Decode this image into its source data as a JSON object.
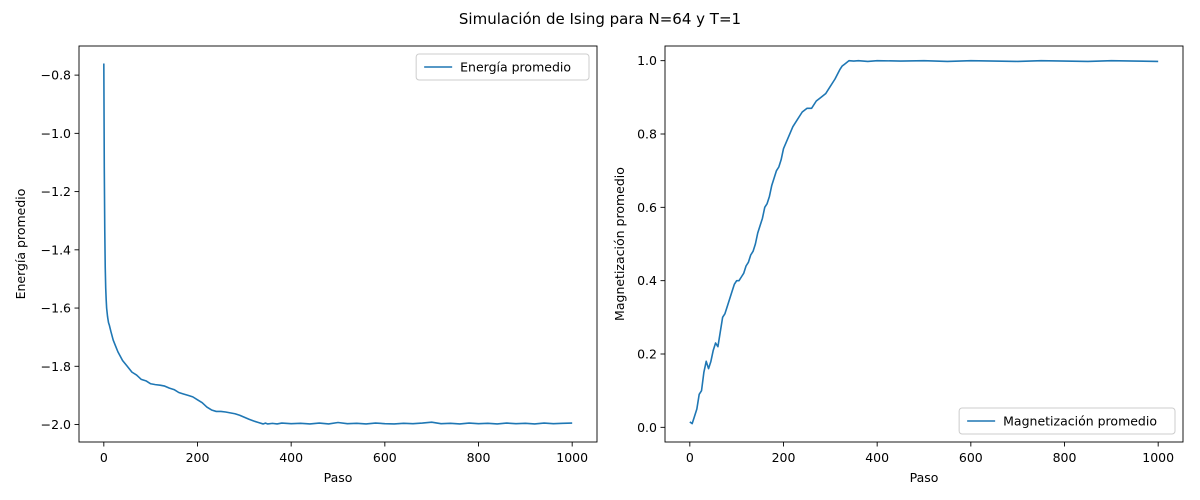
{
  "figure": {
    "title": "Simulación de Ising para N=64 y T=1"
  },
  "chart_data": [
    {
      "type": "line",
      "title": "",
      "xlabel": "Paso",
      "ylabel": "Energía promedio",
      "xlim": [
        -53,
        1053
      ],
      "ylim": [
        -2.06,
        -0.7
      ],
      "xticks": [
        0,
        200,
        400,
        600,
        800,
        1000
      ],
      "xtick_labels": [
        "0",
        "200",
        "400",
        "600",
        "800",
        "1000"
      ],
      "yticks": [
        -2.0,
        -1.8,
        -1.6,
        -1.4,
        -1.2,
        -1.0,
        -0.8
      ],
      "ytick_labels": [
        "−2.0",
        "−1.8",
        "−1.6",
        "−1.4",
        "−1.2",
        "−1.0",
        "−0.8"
      ],
      "legend_position": "upper right",
      "series": [
        {
          "name": "Energía promedio",
          "color": "#1f77b4",
          "x": [
            0,
            1,
            2,
            3,
            4,
            5,
            6,
            8,
            10,
            12,
            15,
            20,
            25,
            30,
            40,
            50,
            60,
            70,
            80,
            90,
            100,
            110,
            120,
            130,
            140,
            150,
            160,
            170,
            180,
            190,
            200,
            210,
            220,
            230,
            240,
            250,
            260,
            270,
            280,
            290,
            300,
            310,
            320,
            330,
            340,
            345,
            350,
            360,
            370,
            380,
            400,
            420,
            440,
            460,
            480,
            500,
            520,
            540,
            560,
            580,
            600,
            620,
            640,
            660,
            680,
            700,
            720,
            740,
            760,
            780,
            800,
            820,
            840,
            860,
            880,
            900,
            920,
            940,
            960,
            980,
            1000
          ],
          "values": [
            -0.76,
            -1.12,
            -1.33,
            -1.46,
            -1.53,
            -1.57,
            -1.6,
            -1.63,
            -1.65,
            -1.66,
            -1.68,
            -1.71,
            -1.73,
            -1.75,
            -1.78,
            -1.8,
            -1.82,
            -1.83,
            -1.845,
            -1.85,
            -1.86,
            -1.863,
            -1.865,
            -1.868,
            -1.875,
            -1.88,
            -1.89,
            -1.895,
            -1.9,
            -1.905,
            -1.915,
            -1.925,
            -1.94,
            -1.95,
            -1.955,
            -1.955,
            -1.957,
            -1.96,
            -1.963,
            -1.968,
            -1.975,
            -1.982,
            -1.988,
            -1.993,
            -1.998,
            -1.995,
            -1.998,
            -1.996,
            -1.998,
            -1.995,
            -1.997,
            -1.996,
            -1.998,
            -1.995,
            -1.998,
            -1.993,
            -1.997,
            -1.996,
            -1.998,
            -1.995,
            -1.997,
            -1.998,
            -1.996,
            -1.997,
            -1.995,
            -1.992,
            -1.997,
            -1.996,
            -1.998,
            -1.995,
            -1.997,
            -1.996,
            -1.998,
            -1.995,
            -1.997,
            -1.996,
            -1.998,
            -1.995,
            -1.997,
            -1.996,
            -1.995
          ]
        }
      ]
    },
    {
      "type": "line",
      "title": "",
      "xlabel": "Paso",
      "ylabel": "Magnetización promedio",
      "xlim": [
        -53,
        1053
      ],
      "ylim": [
        -0.04,
        1.04
      ],
      "xticks": [
        0,
        200,
        400,
        600,
        800,
        1000
      ],
      "xtick_labels": [
        "0",
        "200",
        "400",
        "600",
        "800",
        "1000"
      ],
      "yticks": [
        0.0,
        0.2,
        0.4,
        0.6,
        0.8,
        1.0
      ],
      "ytick_labels": [
        "0.0",
        "0.2",
        "0.4",
        "0.6",
        "0.8",
        "1.0"
      ],
      "legend_position": "lower right",
      "series": [
        {
          "name": "Magnetización promedio",
          "color": "#1f77b4",
          "x": [
            0,
            5,
            10,
            15,
            20,
            25,
            30,
            35,
            40,
            45,
            50,
            55,
            60,
            65,
            70,
            75,
            80,
            85,
            90,
            95,
            100,
            105,
            110,
            115,
            120,
            125,
            130,
            135,
            140,
            145,
            150,
            155,
            160,
            165,
            170,
            175,
            180,
            185,
            190,
            195,
            200,
            210,
            220,
            230,
            240,
            250,
            260,
            270,
            280,
            290,
            300,
            310,
            320,
            325,
            330,
            335,
            340,
            350,
            360,
            380,
            400,
            450,
            500,
            550,
            600,
            650,
            700,
            750,
            800,
            850,
            900,
            950,
            1000
          ],
          "values": [
            0.015,
            0.01,
            0.03,
            0.05,
            0.09,
            0.1,
            0.15,
            0.18,
            0.16,
            0.18,
            0.21,
            0.23,
            0.22,
            0.26,
            0.3,
            0.31,
            0.33,
            0.35,
            0.37,
            0.39,
            0.4,
            0.4,
            0.41,
            0.42,
            0.44,
            0.45,
            0.47,
            0.48,
            0.5,
            0.53,
            0.55,
            0.57,
            0.6,
            0.61,
            0.63,
            0.66,
            0.68,
            0.7,
            0.71,
            0.73,
            0.76,
            0.79,
            0.82,
            0.84,
            0.86,
            0.87,
            0.87,
            0.89,
            0.9,
            0.91,
            0.93,
            0.95,
            0.975,
            0.985,
            0.99,
            0.995,
            1.0,
            0.999,
            1.0,
            0.998,
            1.0,
            0.999,
            1.0,
            0.998,
            1.0,
            0.999,
            0.998,
            1.0,
            0.999,
            0.998,
            1.0,
            0.999,
            0.998
          ]
        }
      ]
    }
  ]
}
